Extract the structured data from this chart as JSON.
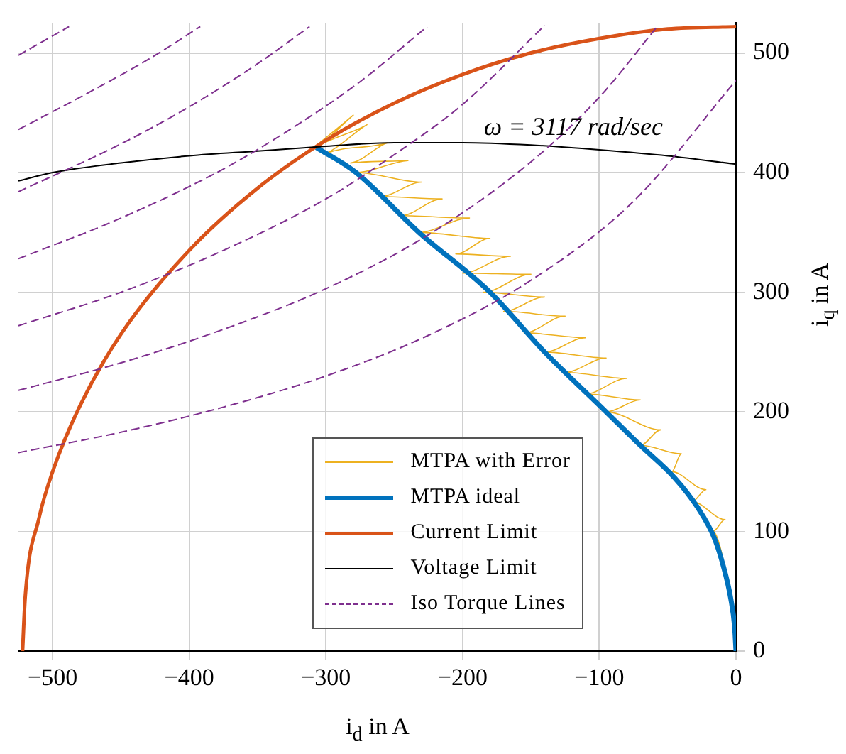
{
  "chart_data": {
    "type": "line",
    "xlabel": "i$_{d}$ in A",
    "ylabel": "i$_{q}$ in A",
    "xlim": [
      -525,
      0
    ],
    "ylim": [
      0,
      525
    ],
    "xticks": [
      -500,
      -400,
      -300,
      -200,
      -100,
      0
    ],
    "yticks": [
      0,
      100,
      200,
      300,
      400,
      500
    ],
    "grid": true,
    "legend": "bottom right",
    "marker": "none",
    "annotations": [
      {
        "text": "ω = 3117 rad/sec",
        "x": -119,
        "y": 437
      }
    ],
    "series": [
      {
        "name": "MTPA with Error",
        "color": "#edb120",
        "x": [
          0,
          -4,
          -17,
          -8,
          -32,
          -22,
          -47,
          -40,
          -70,
          -55,
          -95,
          -70,
          -110,
          -80,
          -125,
          -95,
          -140,
          -110,
          -155,
          -125,
          -170,
          -140,
          -185,
          -150,
          -200,
          -165,
          -205,
          -180,
          -232,
          -195,
          -245,
          -215,
          -260,
          -230,
          -278,
          -240,
          -282,
          -255,
          -300,
          -270,
          -307,
          -280,
          -312
        ],
        "values": [
          0,
          40,
          100,
          110,
          125,
          135,
          150,
          165,
          172,
          185,
          200,
          210,
          215,
          228,
          233,
          245,
          250,
          262,
          266,
          280,
          284,
          296,
          300,
          315,
          316,
          330,
          332,
          345,
          350,
          362,
          364,
          378,
          380,
          392,
          400,
          410,
          408,
          425,
          416,
          440,
          421,
          448,
          418
        ]
      },
      {
        "name": "MTPA ideal",
        "color": "#0072bd",
        "x": [
          0,
          -1,
          -4,
          -9,
          -16,
          -28,
          -45,
          -70,
          -95,
          -140,
          -180,
          -232,
          -278,
          -307
        ],
        "values": [
          0,
          20,
          45,
          70,
          95,
          120,
          145,
          172,
          200,
          250,
          300,
          350,
          400,
          421
        ]
      },
      {
        "name": "Current Limit",
        "color": "#d95319",
        "x": [
          -522,
          -520,
          -510,
          -500,
          -480,
          -450,
          -400,
          -350,
          -300,
          -250,
          -200,
          -150,
          -100,
          -50,
          0
        ],
        "values": [
          0,
          46,
          111,
          150,
          205,
          265,
          335,
          387,
          427,
          458,
          482,
          500,
          512,
          520,
          522
        ]
      },
      {
        "name": "Voltage Limit",
        "color": "#000000",
        "x": [
          -525,
          -500,
          -450,
          -400,
          -350,
          -300,
          -250,
          -200,
          -150,
          -100,
          -50,
          0
        ],
        "values": [
          393,
          400,
          408,
          414,
          418,
          422,
          425,
          425,
          423,
          419,
          414,
          407
        ]
      },
      {
        "name": "Iso Torque Lines",
        "color": "#7e2f8e",
        "line_style": "dashed",
        "x": [
          -525,
          -450,
          -375,
          -300,
          -225,
          -150,
          -75,
          0
        ],
        "values": [
          166,
          183,
          204,
          230,
          264,
          310,
          376,
          477
        ]
      },
      {
        "color": "#7e2f8e",
        "line_style": "dashed",
        "x": [
          -525,
          -450,
          -375,
          -300,
          -225,
          -150,
          -100,
          -57
        ],
        "values": [
          218,
          241,
          269,
          303,
          348,
          409,
          463,
          523
        ]
      },
      {
        "color": "#7e2f8e",
        "line_style": "dashed",
        "x": [
          -525,
          -450,
          -375,
          -300,
          -250,
          -200,
          -140
        ],
        "values": [
          272,
          300,
          335,
          378,
          415,
          457,
          523
        ]
      },
      {
        "color": "#7e2f8e",
        "line_style": "dashed",
        "x": [
          -525,
          -450,
          -375,
          -325,
          -275,
          -226
        ],
        "values": [
          328,
          362,
          403,
          437,
          476,
          522
        ]
      },
      {
        "color": "#7e2f8e",
        "line_style": "dashed",
        "x": [
          -525,
          -450,
          -400,
          -350,
          -312
        ],
        "values": [
          384,
          424,
          455,
          491,
          522
        ]
      },
      {
        "color": "#7e2f8e",
        "line_style": "dashed",
        "x": [
          -525,
          -475,
          -425,
          -392
        ],
        "values": [
          436,
          466,
          498,
          522
        ]
      },
      {
        "color": "#7e2f8e",
        "line_style": "dashed",
        "x": [
          -525,
          -488
        ],
        "values": [
          498,
          522
        ]
      }
    ]
  }
}
